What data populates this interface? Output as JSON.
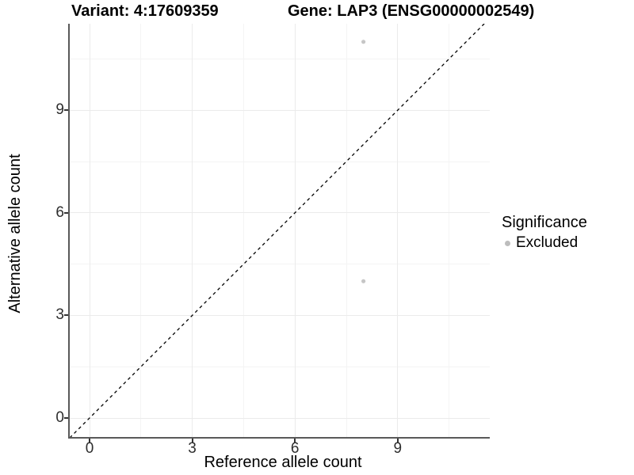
{
  "chart_data": {
    "type": "scatter",
    "titles": {
      "left": "Variant: 4:17609359",
      "right": "Gene: LAP3 (ENSG00000002549)"
    },
    "xlabel": "Reference allele count",
    "ylabel": "Alternative allele count",
    "x_ticks": [
      0,
      3,
      6,
      9
    ],
    "y_ticks": [
      0,
      3,
      6,
      9
    ],
    "x_minor_ticks": [
      1.5,
      4.5,
      7.5,
      10.5
    ],
    "y_minor_ticks": [
      1.5,
      4.5,
      7.5,
      10.5
    ],
    "xlim": [
      -0.58,
      11.69
    ],
    "ylim": [
      -0.58,
      11.53
    ],
    "grid": true,
    "identity_line": {
      "equation": "y = x",
      "style": "dashed",
      "color": "#000000"
    },
    "series": [
      {
        "name": "Excluded",
        "color": "#c6c6c6",
        "points": [
          [
            8,
            11
          ],
          [
            8,
            4
          ]
        ]
      }
    ],
    "legend": {
      "title": "Significance",
      "position": "right",
      "items": [
        {
          "label": "Excluded",
          "color": "#bdbdbd"
        }
      ]
    },
    "colors": {
      "axis_line": "#595959",
      "tick_mark": "#333333",
      "grid_major": "#ebebeb",
      "grid_minor": "#f4f4f4"
    }
  }
}
